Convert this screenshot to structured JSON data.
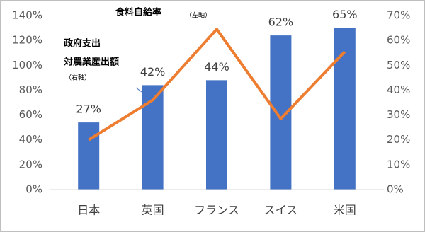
{
  "chart_data": {
    "type": "bar_line",
    "categories": [
      "日本",
      "英国",
      "フランス",
      "スイス",
      "米国"
    ],
    "series": [
      {
        "type": "bar",
        "axis": "y2",
        "color": "#4472c4",
        "values": [
          27,
          42,
          44,
          62,
          65
        ],
        "value_labels": [
          "27%",
          "42%",
          "44%",
          "62%",
          "65%"
        ]
      },
      {
        "type": "line",
        "color": "#ed7d31",
        "values": [
          40,
          72,
          129,
          57,
          111
        ]
      }
    ],
    "annotations": [
      "食料自給率",
      "（左軸）",
      "政府支出",
      "対農業産出額",
      "（右軸）"
    ],
    "ylim": [
      0,
      140
    ],
    "yticks": [
      {
        "value": 0,
        "label": "0%"
      },
      {
        "value": 20,
        "label": "20%"
      },
      {
        "value": 40,
        "label": "40%"
      },
      {
        "value": 60,
        "label": "60%"
      },
      {
        "value": 80,
        "label": "80%"
      },
      {
        "value": 100,
        "label": "100%"
      },
      {
        "value": 120,
        "label": "120%"
      },
      {
        "value": 140,
        "label": "140%"
      }
    ],
    "y2lim": [
      0,
      70
    ],
    "y2ticks": [
      {
        "value": 0,
        "label": "0%"
      },
      {
        "value": 10,
        "label": "10%"
      },
      {
        "value": 20,
        "label": "20%"
      },
      {
        "value": 30,
        "label": "30%"
      },
      {
        "value": 40,
        "label": "40%"
      },
      {
        "value": 50,
        "label": "50%"
      },
      {
        "value": 60,
        "label": "60%"
      },
      {
        "value": 70,
        "label": "70%"
      }
    ]
  }
}
